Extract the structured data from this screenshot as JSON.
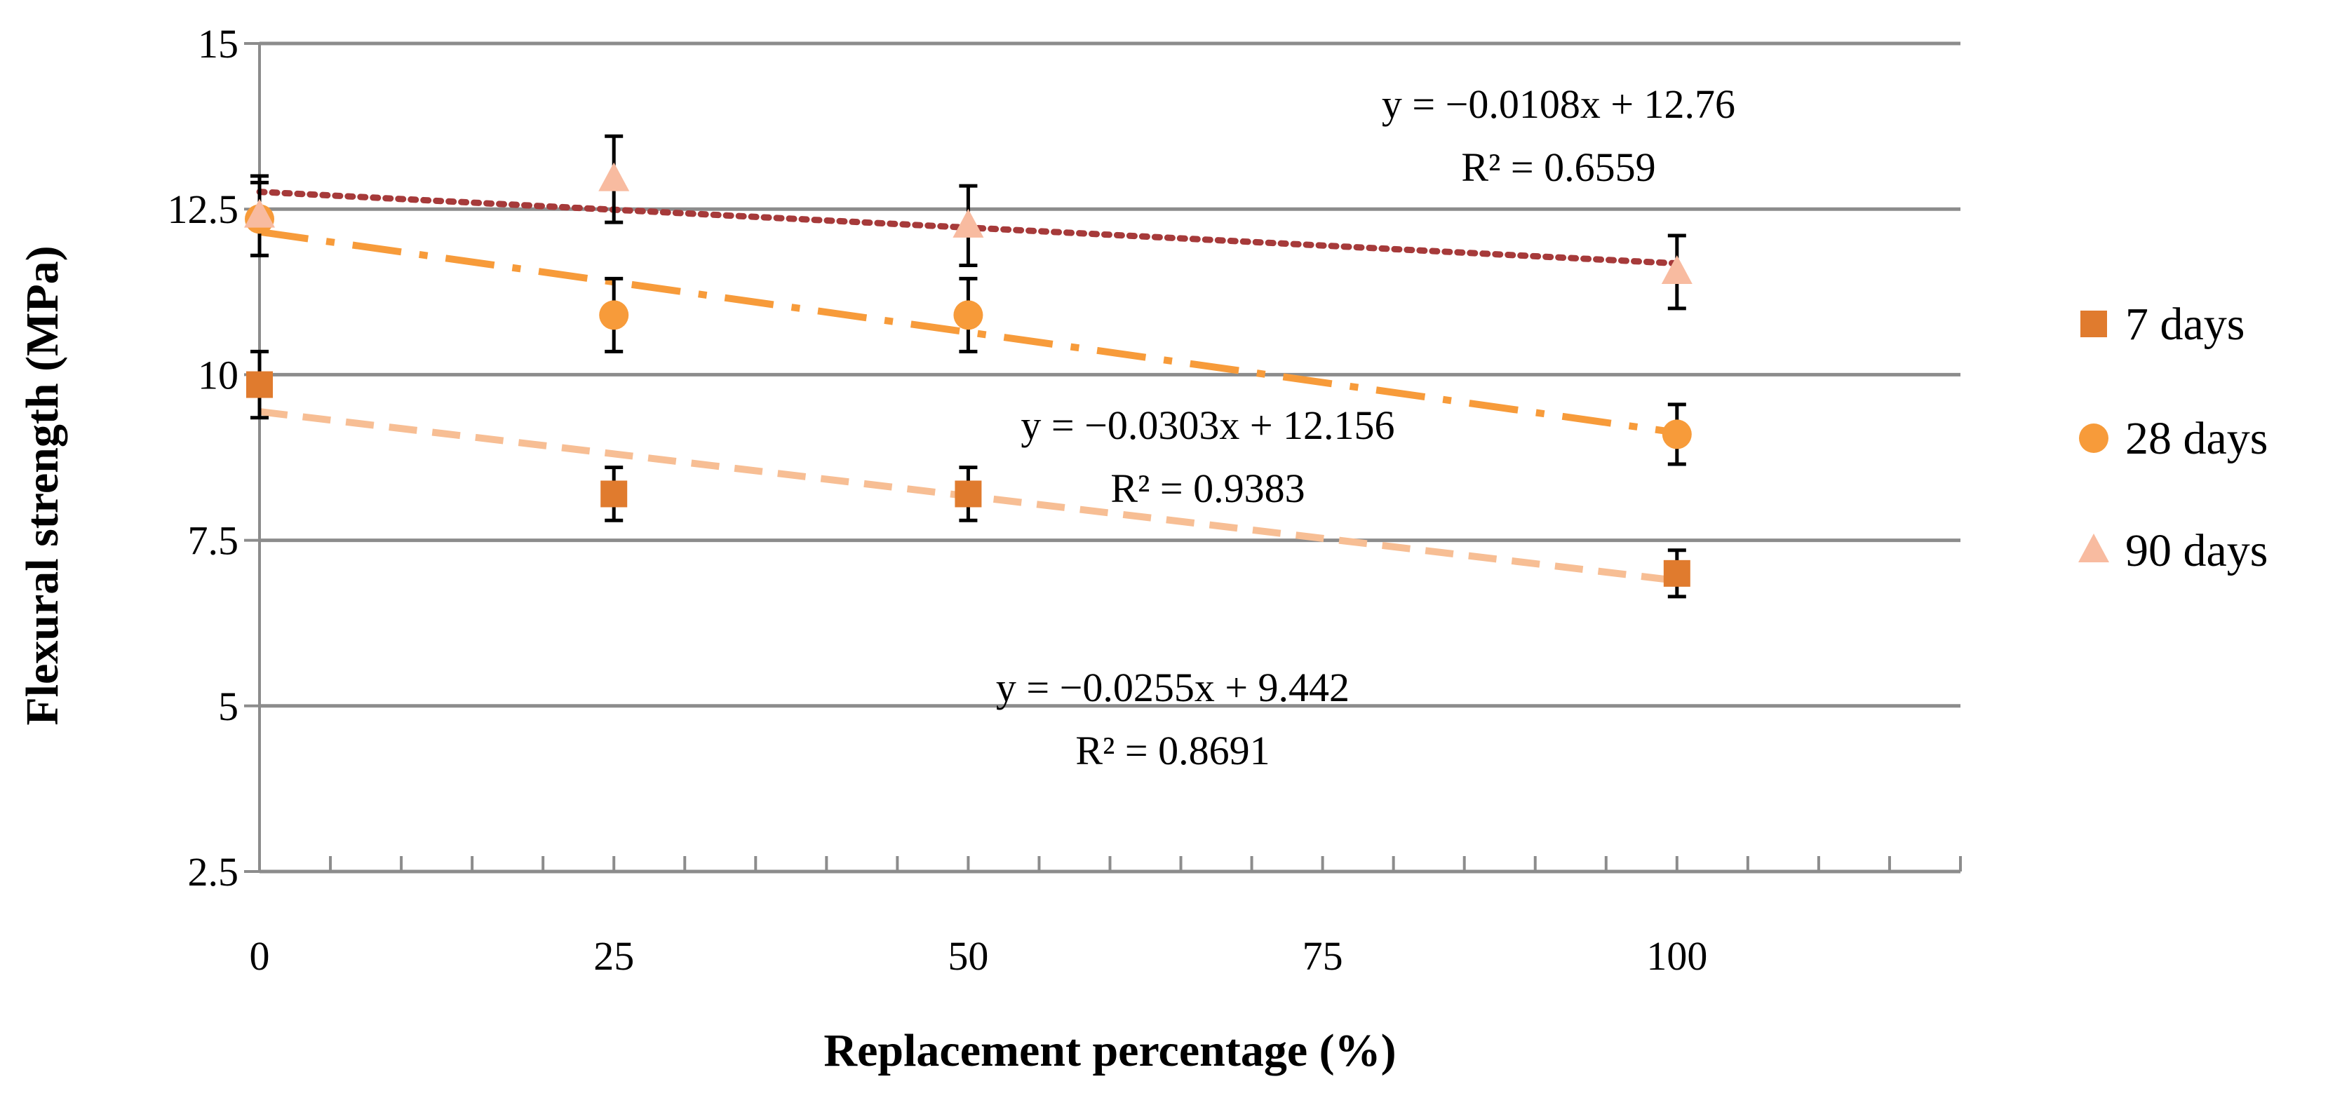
{
  "chart_data": {
    "type": "scatter",
    "title": "",
    "xlabel": "Replacement percentage (%)",
    "ylabel": "Flexural strength (MPa)",
    "xlim": [
      0,
      120
    ],
    "ylim": [
      2.5,
      15
    ],
    "xticks": [
      0,
      25,
      50,
      75,
      100
    ],
    "xtick_labels": [
      "0",
      "25",
      "50",
      "75",
      "100"
    ],
    "yticks": [
      2.5,
      5,
      7.5,
      10,
      12.5,
      15
    ],
    "ytick_labels": [
      "2.5",
      "5",
      "7.5",
      "10",
      "12.5",
      "15"
    ],
    "x_minor_step": 5,
    "grid": "horizontal",
    "legend_position": "right",
    "series": [
      {
        "name": "7 days",
        "marker": "square",
        "color": "#E07B2E",
        "x": [
          0,
          25,
          50,
          100
        ],
        "y": [
          9.85,
          8.2,
          8.2,
          7.0
        ],
        "error": [
          0.5,
          0.4,
          0.4,
          0.35
        ],
        "trendline": {
          "slope": -0.0255,
          "intercept": 9.442,
          "color": "#F7BE94",
          "style": "dashed",
          "equation": "y = −0.0255x + 9.442",
          "r2": "R² = 0.8691"
        }
      },
      {
        "name": "28 days",
        "marker": "circle",
        "color": "#F79B3A",
        "x": [
          0,
          25,
          50,
          100
        ],
        "y": [
          12.35,
          10.9,
          10.9,
          9.1
        ],
        "error": [
          0.55,
          0.55,
          0.55,
          0.45
        ],
        "trendline": {
          "slope": -0.0303,
          "intercept": 12.156,
          "color": "#F79B3A",
          "style": "dashdot",
          "equation": "y = −0.0303x + 12.156",
          "r2": "R² = 0.9383"
        }
      },
      {
        "name": "90 days",
        "marker": "triangle",
        "color": "#F8BBA0",
        "x": [
          0,
          25,
          50,
          100
        ],
        "y": [
          12.4,
          12.95,
          12.25,
          11.55
        ],
        "error": [
          0.6,
          0.65,
          0.6,
          0.55
        ],
        "trendline": {
          "slope": -0.0108,
          "intercept": 12.76,
          "color": "#A63A3A",
          "style": "dotted",
          "equation": "y = −0.0108x + 12.76",
          "r2": "R² = 0.6559"
        }
      }
    ]
  }
}
